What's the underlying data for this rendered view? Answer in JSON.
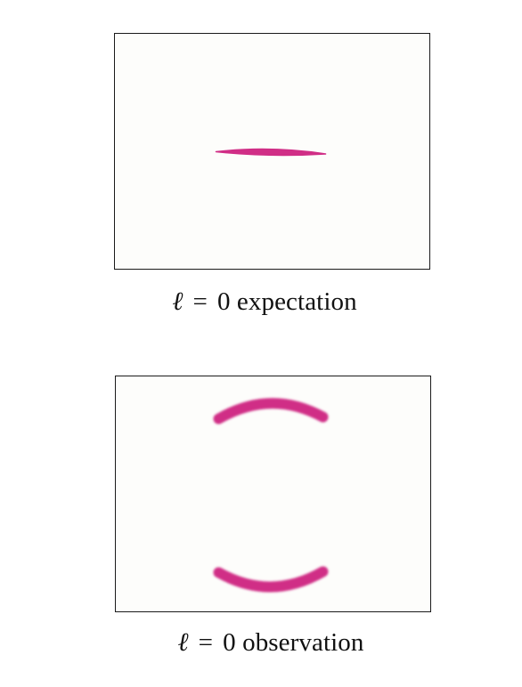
{
  "panels": [
    {
      "symbol": "ℓ",
      "equals": "=",
      "caption_rest": "0 expectation",
      "mark_color": "#d02e86",
      "pattern": "single-line"
    },
    {
      "symbol": "ℓ",
      "equals": "=",
      "caption_rest": "0 observation",
      "mark_color": "#d02e86",
      "pattern": "two-arcs"
    }
  ]
}
